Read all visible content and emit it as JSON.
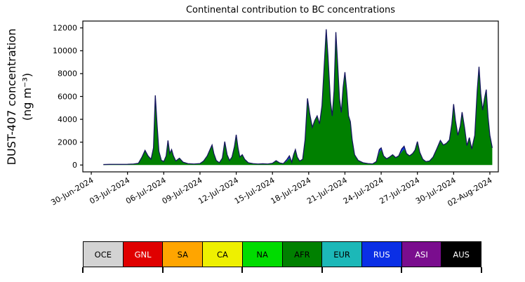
{
  "title": "Continental contribution to BC concentrations",
  "ylabel_line1": "DUST-407 concentration",
  "ylabel_line2": "(ng m⁻³)",
  "chart_data": {
    "type": "area",
    "stacked": true,
    "title": "Continental contribution to BC concentrations",
    "ylabel": "DUST-407 concentration (ng m⁻³)",
    "x_unit": "days since 30-Jun-2024",
    "xlim": [
      -0.7,
      33.7
    ],
    "ylim": [
      -600,
      12600
    ],
    "grid": false,
    "outline_color": "#15155e",
    "x_tick_positions": [
      0,
      3,
      6,
      9,
      12,
      15,
      18,
      21,
      24,
      27,
      30,
      33
    ],
    "x_tick_labels": [
      "30-Jun-2024",
      "03-Jul-2024",
      "06-Jul-2024",
      "09-Jul-2024",
      "12-Jul-2024",
      "15-Jul-2024",
      "18-Jul-2024",
      "21-Jul-2024",
      "24-Jul-2024",
      "27-Jul-2024",
      "30-Jul-2024",
      "02-Aug-2024"
    ],
    "y_ticks": [
      0,
      2000,
      4000,
      6000,
      8000,
      10000,
      12000
    ],
    "series_order": [
      "AFR",
      "RUS",
      "ASI"
    ],
    "series_colors": {
      "AFR": "#008000",
      "RUS": "#0a2fe6",
      "ASI": "#7a0d8e"
    },
    "points_format": [
      "x_days",
      "AFR",
      "RUS",
      "ASI"
    ],
    "points": [
      [
        1.0,
        40,
        0,
        0
      ],
      [
        1.5,
        55,
        0,
        0
      ],
      [
        2.0,
        60,
        0,
        0
      ],
      [
        2.5,
        55,
        0,
        0
      ],
      [
        3.0,
        65,
        0,
        0
      ],
      [
        3.5,
        90,
        0,
        0
      ],
      [
        3.9,
        150,
        0,
        0
      ],
      [
        4.2,
        700,
        0,
        0
      ],
      [
        4.45,
        1250,
        30,
        0
      ],
      [
        4.7,
        800,
        0,
        0
      ],
      [
        4.95,
        500,
        0,
        0
      ],
      [
        5.15,
        1500,
        0,
        0
      ],
      [
        5.3,
        6050,
        50,
        0
      ],
      [
        5.45,
        3500,
        0,
        0
      ],
      [
        5.6,
        1200,
        0,
        0
      ],
      [
        5.8,
        420,
        0,
        0
      ],
      [
        6.0,
        300,
        0,
        0
      ],
      [
        6.2,
        800,
        0,
        0
      ],
      [
        6.35,
        2100,
        50,
        0
      ],
      [
        6.5,
        1000,
        0,
        0
      ],
      [
        6.65,
        1350,
        0,
        0
      ],
      [
        6.8,
        800,
        0,
        0
      ],
      [
        7.0,
        350,
        0,
        0
      ],
      [
        7.3,
        600,
        0,
        0
      ],
      [
        7.6,
        250,
        0,
        0
      ],
      [
        8.0,
        120,
        0,
        0
      ],
      [
        8.5,
        90,
        0,
        0
      ],
      [
        9.0,
        130,
        0,
        0
      ],
      [
        9.3,
        350,
        0,
        0
      ],
      [
        9.6,
        800,
        0,
        0
      ],
      [
        9.85,
        1400,
        0,
        0
      ],
      [
        10.0,
        1700,
        50,
        0
      ],
      [
        10.15,
        1000,
        0,
        0
      ],
      [
        10.35,
        400,
        0,
        0
      ],
      [
        10.6,
        200,
        0,
        0
      ],
      [
        10.85,
        600,
        0,
        0
      ],
      [
        11.05,
        2000,
        50,
        0
      ],
      [
        11.25,
        900,
        0,
        0
      ],
      [
        11.45,
        400,
        0,
        0
      ],
      [
        11.65,
        700,
        0,
        0
      ],
      [
        11.85,
        1600,
        0,
        0
      ],
      [
        12.0,
        2600,
        50,
        0
      ],
      [
        12.15,
        1500,
        0,
        0
      ],
      [
        12.3,
        700,
        0,
        0
      ],
      [
        12.5,
        900,
        0,
        0
      ],
      [
        12.7,
        500,
        0,
        0
      ],
      [
        13.0,
        200,
        0,
        0
      ],
      [
        13.4,
        120,
        0,
        0
      ],
      [
        13.8,
        90,
        0,
        0
      ],
      [
        14.2,
        110,
        0,
        0
      ],
      [
        14.6,
        90,
        0,
        0
      ],
      [
        15.0,
        150,
        0,
        0
      ],
      [
        15.3,
        380,
        0,
        0
      ],
      [
        15.6,
        180,
        0,
        0
      ],
      [
        15.9,
        120,
        0,
        0
      ],
      [
        16.2,
        350,
        80,
        60
      ],
      [
        16.4,
        600,
        120,
        80
      ],
      [
        16.6,
        250,
        0,
        0
      ],
      [
        16.75,
        900,
        0,
        0
      ],
      [
        16.9,
        1300,
        50,
        0
      ],
      [
        17.05,
        700,
        0,
        0
      ],
      [
        17.25,
        350,
        0,
        0
      ],
      [
        17.5,
        500,
        0,
        0
      ],
      [
        17.7,
        2200,
        0,
        0
      ],
      [
        17.9,
        5750,
        80,
        0
      ],
      [
        18.1,
        4400,
        0,
        0
      ],
      [
        18.3,
        3300,
        0,
        0
      ],
      [
        18.5,
        3900,
        0,
        0
      ],
      [
        18.7,
        4300,
        0,
        0
      ],
      [
        18.9,
        3600,
        0,
        0
      ],
      [
        19.1,
        5200,
        0,
        0
      ],
      [
        19.3,
        9000,
        0,
        0
      ],
      [
        19.45,
        11800,
        80,
        0
      ],
      [
        19.6,
        9500,
        0,
        0
      ],
      [
        19.8,
        5600,
        0,
        0
      ],
      [
        19.95,
        4300,
        0,
        0
      ],
      [
        20.1,
        6500,
        0,
        0
      ],
      [
        20.25,
        11550,
        80,
        0
      ],
      [
        20.4,
        8800,
        0,
        0
      ],
      [
        20.55,
        5800,
        0,
        0
      ],
      [
        20.7,
        4600,
        0,
        0
      ],
      [
        20.85,
        6800,
        0,
        0
      ],
      [
        21.0,
        8050,
        80,
        0
      ],
      [
        21.15,
        6500,
        0,
        0
      ],
      [
        21.3,
        4300,
        0,
        0
      ],
      [
        21.45,
        3800,
        0,
        0
      ],
      [
        21.6,
        2200,
        0,
        0
      ],
      [
        21.8,
        900,
        0,
        0
      ],
      [
        22.1,
        400,
        0,
        0
      ],
      [
        22.5,
        200,
        0,
        0
      ],
      [
        22.9,
        130,
        0,
        0
      ],
      [
        23.3,
        100,
        0,
        0
      ],
      [
        23.6,
        300,
        0,
        0
      ],
      [
        23.85,
        1100,
        200,
        60
      ],
      [
        24.0,
        1350,
        150,
        0
      ],
      [
        24.2,
        800,
        0,
        0
      ],
      [
        24.45,
        550,
        0,
        0
      ],
      [
        24.7,
        700,
        0,
        0
      ],
      [
        24.95,
        900,
        0,
        0
      ],
      [
        25.2,
        650,
        0,
        0
      ],
      [
        25.45,
        800,
        0,
        0
      ],
      [
        25.7,
        1150,
        200,
        60
      ],
      [
        25.9,
        1400,
        250,
        0
      ],
      [
        26.1,
        1000,
        0,
        0
      ],
      [
        26.35,
        800,
        0,
        0
      ],
      [
        26.6,
        1000,
        0,
        0
      ],
      [
        26.8,
        1300,
        0,
        0
      ],
      [
        27.0,
        1950,
        100,
        0
      ],
      [
        27.2,
        1100,
        0,
        0
      ],
      [
        27.45,
        500,
        0,
        0
      ],
      [
        27.7,
        300,
        0,
        0
      ],
      [
        28.0,
        350,
        0,
        0
      ],
      [
        28.3,
        700,
        0,
        0
      ],
      [
        28.6,
        1400,
        0,
        0
      ],
      [
        28.9,
        2050,
        100,
        0
      ],
      [
        29.15,
        1750,
        0,
        0
      ],
      [
        29.4,
        1900,
        0,
        0
      ],
      [
        29.65,
        2200,
        0,
        0
      ],
      [
        29.85,
        3600,
        0,
        0
      ],
      [
        30.0,
        5250,
        80,
        0
      ],
      [
        30.15,
        3900,
        0,
        0
      ],
      [
        30.35,
        2600,
        0,
        0
      ],
      [
        30.55,
        3400,
        0,
        0
      ],
      [
        30.7,
        4550,
        80,
        0
      ],
      [
        30.9,
        3300,
        0,
        0
      ],
      [
        31.1,
        1700,
        0,
        0
      ],
      [
        31.3,
        2400,
        0,
        0
      ],
      [
        31.5,
        1400,
        0,
        0
      ],
      [
        31.75,
        2600,
        0,
        0
      ],
      [
        31.95,
        6500,
        0,
        0
      ],
      [
        32.1,
        8200,
        150,
        250
      ],
      [
        32.25,
        6200,
        0,
        0
      ],
      [
        32.4,
        4800,
        0,
        0
      ],
      [
        32.55,
        5800,
        0,
        0
      ],
      [
        32.7,
        6500,
        100,
        0
      ],
      [
        32.85,
        4200,
        0,
        0
      ],
      [
        33.0,
        2600,
        0,
        0
      ],
      [
        33.2,
        1500,
        0,
        0
      ]
    ]
  },
  "legend": {
    "items": [
      {
        "label": "OCE",
        "color": "#d3d3d3",
        "text_color": "#000000"
      },
      {
        "label": "GNL",
        "color": "#e00000",
        "text_color": "#ffffff"
      },
      {
        "label": "SA",
        "color": "#ffa500",
        "text_color": "#000000"
      },
      {
        "label": "CA",
        "color": "#eef000",
        "text_color": "#000000"
      },
      {
        "label": "NA",
        "color": "#00dc00",
        "text_color": "#000000"
      },
      {
        "label": "AFR",
        "color": "#008000",
        "text_color": "#000000"
      },
      {
        "label": "EUR",
        "color": "#1cb8b8",
        "text_color": "#000000"
      },
      {
        "label": "RUS",
        "color": "#0a2fe6",
        "text_color": "#ffffff"
      },
      {
        "label": "ASI",
        "color": "#7a0d8e",
        "text_color": "#ffffff"
      },
      {
        "label": "AUS",
        "color": "#000000",
        "text_color": "#ffffff"
      }
    ]
  }
}
